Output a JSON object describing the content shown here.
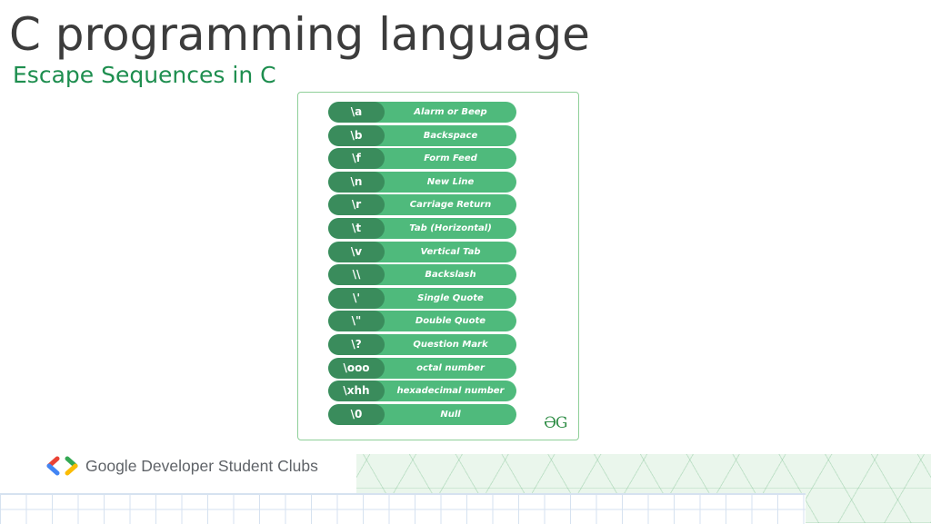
{
  "slide": {
    "title": "C programming language",
    "subtitle": "Escape Sequences in C"
  },
  "escape_table": {
    "rows": [
      {
        "code": "\\a",
        "desc": "Alarm or Beep"
      },
      {
        "code": "\\b",
        "desc": "Backspace"
      },
      {
        "code": "\\f",
        "desc": "Form Feed"
      },
      {
        "code": "\\n",
        "desc": "New Line"
      },
      {
        "code": "\\r",
        "desc": "Carriage Return"
      },
      {
        "code": "\\t",
        "desc": "Tab (Horizontal)"
      },
      {
        "code": "\\v",
        "desc": "Vertical Tab"
      },
      {
        "code": "\\\\",
        "desc": "Backslash"
      },
      {
        "code": "\\'",
        "desc": "Single Quote"
      },
      {
        "code": "\\\"",
        "desc": "Double Quote"
      },
      {
        "code": "\\?",
        "desc": "Question Mark"
      },
      {
        "code": "\\ooo",
        "desc": "octal number"
      },
      {
        "code": "\\xhh",
        "desc": "hexadecimal number"
      },
      {
        "code": "\\0",
        "desc": "Null"
      }
    ],
    "logo_text": "ƏG"
  },
  "footer": {
    "brand_text": "Google Developer Student Clubs"
  },
  "colors": {
    "title": "#3c3c3c",
    "subtitle": "#1e8e4f",
    "row_fill": "#4fba7c",
    "code_fill": "#3a8c5c"
  }
}
